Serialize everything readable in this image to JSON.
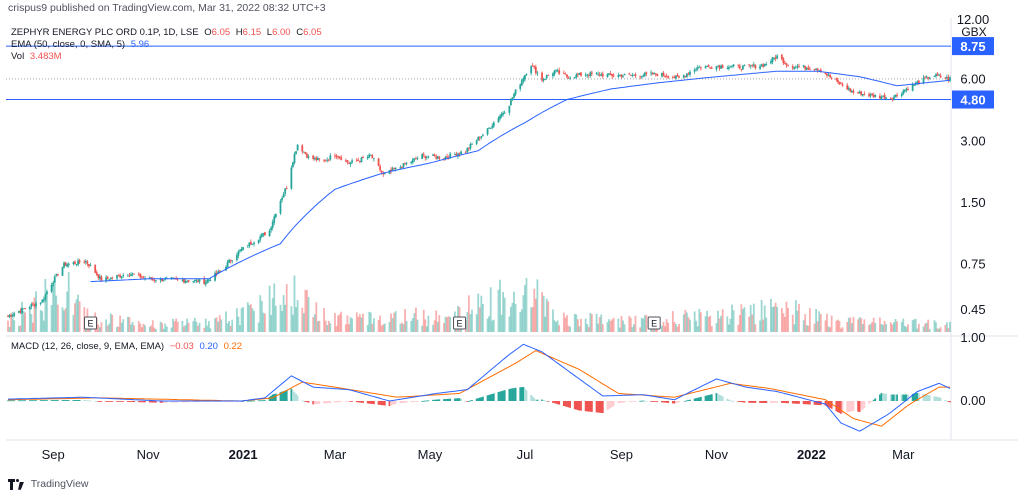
{
  "header": {
    "published_note": "crispus9 published on TradingView.com, Mar 31, 2022 08:32 UTC+3"
  },
  "legend": {
    "symbol": "ZEPHYR ENERGY PLC ORD 0.1P, 1D, LSE",
    "o_label": "O",
    "o_value": "6.05",
    "h_label": "H",
    "h_value": "6.15",
    "l_label": "L",
    "l_value": "6.00",
    "c_label": "C",
    "c_value": "6.05",
    "ema_label": "EMA (50, close, 0, SMA, 5)",
    "ema_value": "5.96",
    "vol_label": "Vol",
    "vol_value": "3.483M"
  },
  "macd_legend": {
    "label": "MACD (12, 26, close, 9, EMA, EMA)",
    "hist": "−0.03",
    "macd": "0.20",
    "signal": "0.22"
  },
  "footer": {
    "brand": "TradingView"
  },
  "colors": {
    "up": "#26a69a",
    "down": "#ef5350",
    "ema": "#2962ff",
    "macd": "#2962ff",
    "signal": "#ff6d00",
    "level": "#2962ff"
  },
  "chart_data": [
    {
      "type": "candlestick",
      "currency_label": "GBX",
      "y_scale": "log",
      "y_ticks": [
        "0.45",
        "0.75",
        "1.50",
        "3.00",
        "6.00",
        "12.00"
      ],
      "x_ticks": [
        "Sep",
        "Nov",
        "2021",
        "Mar",
        "May",
        "Jul",
        "Sep",
        "Nov",
        "2022",
        "Mar"
      ],
      "level_lines": [
        {
          "value": 8.75,
          "label": "8.75"
        },
        {
          "value": 4.8,
          "label": "4.80"
        }
      ],
      "current_price": 6.05,
      "earnings_markers": [
        {
          "date": "2020-09-25",
          "label": "E"
        },
        {
          "date": "2021-05-20",
          "label": "E"
        },
        {
          "date": "2021-09-22",
          "label": "E"
        }
      ],
      "price_keypoints": [
        [
          "2020-08-03",
          0.42
        ],
        [
          "2020-08-25",
          0.5
        ],
        [
          "2020-09-08",
          0.75
        ],
        [
          "2020-09-22",
          0.78
        ],
        [
          "2020-10-02",
          0.63
        ],
        [
          "2020-10-20",
          0.68
        ],
        [
          "2020-11-01",
          0.64
        ],
        [
          "2020-11-25",
          0.63
        ],
        [
          "2020-12-08",
          0.62
        ],
        [
          "2020-12-18",
          0.7
        ],
        [
          "2020-12-28",
          0.85
        ],
        [
          "2021-01-08",
          0.98
        ],
        [
          "2021-01-18",
          1.1
        ],
        [
          "2021-01-29",
          1.8
        ],
        [
          "2021-02-05",
          2.9
        ],
        [
          "2021-02-12",
          2.5
        ],
        [
          "2021-02-22",
          2.4
        ],
        [
          "2021-03-01",
          2.6
        ],
        [
          "2021-03-10",
          2.35
        ],
        [
          "2021-03-18",
          2.45
        ],
        [
          "2021-03-24",
          2.55
        ],
        [
          "2021-04-01",
          2.05
        ],
        [
          "2021-04-12",
          2.25
        ],
        [
          "2021-04-26",
          2.55
        ],
        [
          "2021-05-10",
          2.5
        ],
        [
          "2021-05-24",
          2.7
        ],
        [
          "2021-06-07",
          3.4
        ],
        [
          "2021-06-20",
          4.4
        ],
        [
          "2021-06-28",
          5.8
        ],
        [
          "2021-07-05",
          7.1
        ],
        [
          "2021-07-12",
          6.0
        ],
        [
          "2021-07-20",
          6.6
        ],
        [
          "2021-07-28",
          6.2
        ],
        [
          "2021-08-10",
          6.4
        ],
        [
          "2021-08-25",
          6.3
        ],
        [
          "2021-09-10",
          6.3
        ],
        [
          "2021-09-25",
          6.4
        ],
        [
          "2021-10-08",
          6.1
        ],
        [
          "2021-10-20",
          6.9
        ],
        [
          "2021-11-05",
          7.0
        ],
        [
          "2021-11-20",
          6.9
        ],
        [
          "2021-12-02",
          7.1
        ],
        [
          "2021-12-10",
          7.8
        ],
        [
          "2021-12-18",
          7.0
        ],
        [
          "2022-01-05",
          6.8
        ],
        [
          "2022-01-18",
          5.8
        ],
        [
          "2022-01-28",
          5.2
        ],
        [
          "2022-02-10",
          5.0
        ],
        [
          "2022-02-22",
          4.9
        ],
        [
          "2022-03-01",
          5.3
        ],
        [
          "2022-03-10",
          5.8
        ],
        [
          "2022-03-20",
          6.3
        ],
        [
          "2022-03-31",
          6.05
        ]
      ],
      "ema_keypoints": [
        [
          "2020-09-25",
          0.62
        ],
        [
          "2020-11-01",
          0.64
        ],
        [
          "2020-12-10",
          0.64
        ],
        [
          "2020-12-31",
          0.78
        ],
        [
          "2021-01-25",
          0.95
        ],
        [
          "2021-02-12",
          1.35
        ],
        [
          "2021-03-01",
          1.75
        ],
        [
          "2021-04-01",
          2.1
        ],
        [
          "2021-05-01",
          2.35
        ],
        [
          "2021-06-01",
          2.7
        ],
        [
          "2021-07-01",
          3.7
        ],
        [
          "2021-07-28",
          4.8
        ],
        [
          "2021-08-25",
          5.4
        ],
        [
          "2021-09-25",
          5.8
        ],
        [
          "2021-11-01",
          6.2
        ],
        [
          "2021-12-10",
          6.6
        ],
        [
          "2022-01-05",
          6.6
        ],
        [
          "2022-02-01",
          6.2
        ],
        [
          "2022-02-25",
          5.6
        ],
        [
          "2022-03-31",
          5.96
        ]
      ],
      "volume_keypoints": [
        [
          "2020-08-03",
          0.2
        ],
        [
          "2020-09-08",
          0.9
        ],
        [
          "2020-09-22",
          0.3
        ],
        [
          "2020-11-01",
          0.15
        ],
        [
          "2020-12-15",
          0.2
        ],
        [
          "2021-01-08",
          0.45
        ],
        [
          "2021-02-01",
          1.0
        ],
        [
          "2021-02-12",
          0.5
        ],
        [
          "2021-03-10",
          0.25
        ],
        [
          "2021-04-15",
          0.3
        ],
        [
          "2021-05-10",
          0.35
        ],
        [
          "2021-06-10",
          0.6
        ],
        [
          "2021-07-02",
          1.0
        ],
        [
          "2021-07-20",
          0.3
        ],
        [
          "2021-09-01",
          0.2
        ],
        [
          "2021-10-20",
          0.3
        ],
        [
          "2021-12-10",
          0.5
        ],
        [
          "2022-01-15",
          0.2
        ],
        [
          "2022-03-31",
          0.15
        ]
      ]
    },
    {
      "type": "macd",
      "params": "12, 26, close, 9, EMA, EMA",
      "y_ticks": [
        "0.00",
        "1.00"
      ],
      "macd_keypoints": [
        [
          "2020-08-03",
          0.03
        ],
        [
          "2020-09-20",
          0.06
        ],
        [
          "2020-11-10",
          0.0
        ],
        [
          "2020-12-31",
          0.0
        ],
        [
          "2021-01-15",
          0.05
        ],
        [
          "2021-02-01",
          0.4
        ],
        [
          "2021-02-15",
          0.22
        ],
        [
          "2021-03-10",
          0.18
        ],
        [
          "2021-04-05",
          0.0
        ],
        [
          "2021-05-05",
          0.12
        ],
        [
          "2021-05-25",
          0.18
        ],
        [
          "2021-06-20",
          0.72
        ],
        [
          "2021-06-30",
          0.9
        ],
        [
          "2021-07-12",
          0.78
        ],
        [
          "2021-08-01",
          0.42
        ],
        [
          "2021-08-20",
          0.08
        ],
        [
          "2021-09-15",
          0.1
        ],
        [
          "2021-10-05",
          0.02
        ],
        [
          "2021-11-01",
          0.35
        ],
        [
          "2021-11-20",
          0.22
        ],
        [
          "2021-12-10",
          0.15
        ],
        [
          "2022-01-10",
          -0.05
        ],
        [
          "2022-01-20",
          -0.35
        ],
        [
          "2022-02-01",
          -0.48
        ],
        [
          "2022-02-20",
          -0.2
        ],
        [
          "2022-03-10",
          0.15
        ],
        [
          "2022-03-24",
          0.28
        ],
        [
          "2022-03-31",
          0.2
        ]
      ],
      "signal_keypoints": [
        [
          "2020-08-03",
          0.02
        ],
        [
          "2020-10-01",
          0.05
        ],
        [
          "2020-12-31",
          0.0
        ],
        [
          "2021-01-20",
          0.05
        ],
        [
          "2021-02-08",
          0.3
        ],
        [
          "2021-03-01",
          0.22
        ],
        [
          "2021-04-10",
          0.06
        ],
        [
          "2021-05-20",
          0.12
        ],
        [
          "2021-06-25",
          0.6
        ],
        [
          "2021-07-08",
          0.8
        ],
        [
          "2021-08-05",
          0.5
        ],
        [
          "2021-08-30",
          0.12
        ],
        [
          "2021-10-05",
          0.06
        ],
        [
          "2021-11-10",
          0.28
        ],
        [
          "2021-12-05",
          0.2
        ],
        [
          "2022-01-10",
          0.02
        ],
        [
          "2022-01-28",
          -0.28
        ],
        [
          "2022-02-15",
          -0.4
        ],
        [
          "2022-03-05",
          -0.05
        ],
        [
          "2022-03-24",
          0.22
        ],
        [
          "2022-03-31",
          0.22
        ]
      ]
    }
  ]
}
